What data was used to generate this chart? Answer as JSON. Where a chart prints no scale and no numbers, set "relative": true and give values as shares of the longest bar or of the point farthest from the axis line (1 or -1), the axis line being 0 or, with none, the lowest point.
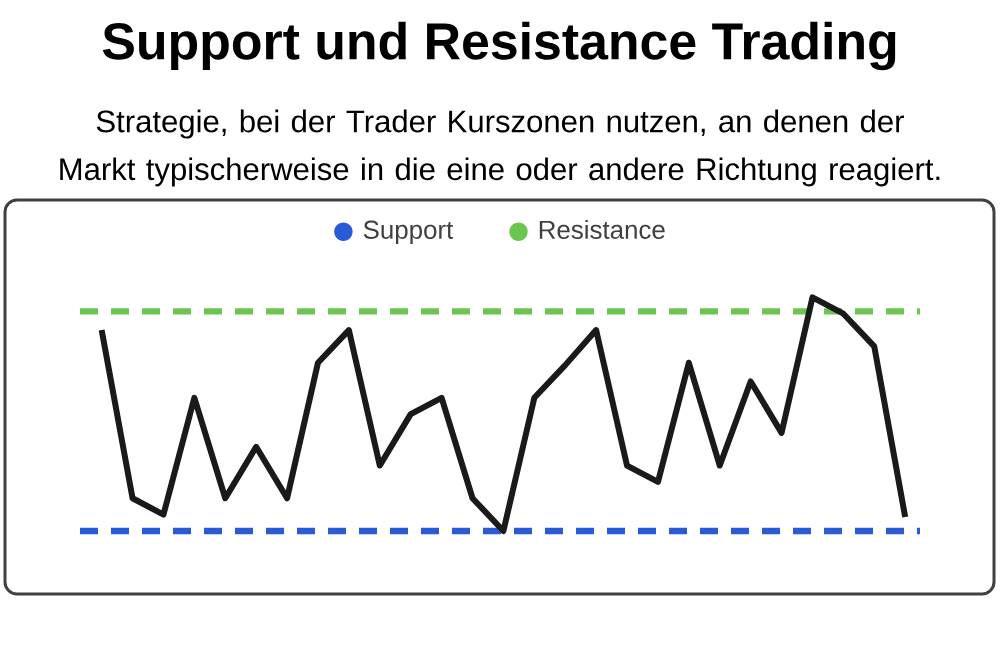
{
  "chart_data": {
    "type": "line",
    "title": "Support und Resistance Trading",
    "subtitle": "Strategie, bei der Trader Kurszonen nutzen, an denen der Markt typischerweise in die eine oder andere Richtung reagiert.",
    "categories": [
      null,
      null,
      null,
      null,
      null,
      null,
      null,
      null,
      null,
      null,
      null,
      null,
      null,
      null,
      null,
      null,
      null,
      null,
      null,
      null,
      null,
      null,
      null,
      null,
      null,
      null,
      null
    ],
    "relative": true,
    "series": [
      {
        "color": "#1a1a1a",
        "values": [
          0.86,
          0.14,
          0.07,
          0.57,
          0.14,
          0.36,
          0.14,
          0.72,
          0.86,
          0.28,
          0.5,
          0.57,
          0.14,
          0,
          0.57,
          0.71,
          0.86,
          0.28,
          0.21,
          0.72,
          0.28,
          0.64,
          0.42,
          1,
          0.93,
          0.79,
          0.06
        ]
      }
    ],
    "ref_lines": [
      {
        "axis": "y",
        "value": 0,
        "label": "Support",
        "color": "#2a5bd7",
        "line_style": "dashed"
      },
      {
        "axis": "y",
        "value": 0.94,
        "label": "Resistance",
        "color": "#6cc551",
        "line_style": "dashed"
      }
    ],
    "legend": "top"
  }
}
